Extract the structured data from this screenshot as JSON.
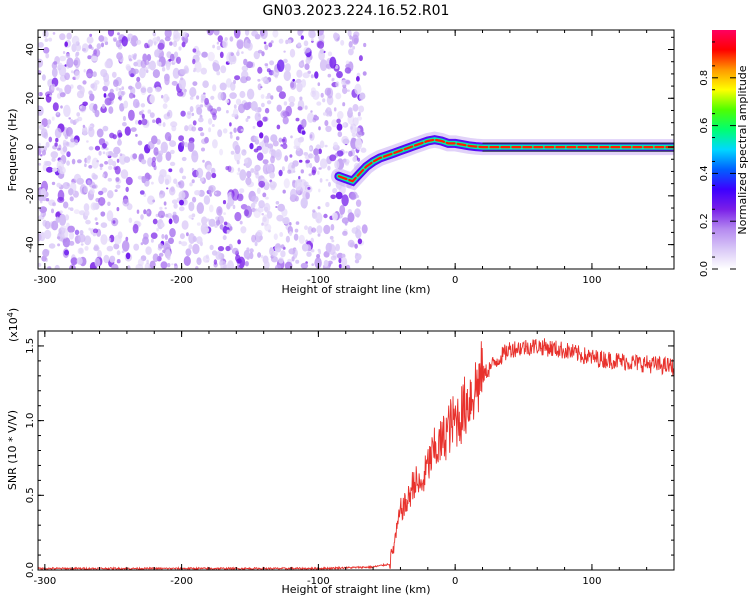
{
  "figure": {
    "title": "GN03.2023.224.16.52.R01"
  },
  "chart_data": [
    {
      "type": "heatmap",
      "title": "GN03.2023.224.16.52.R01",
      "xlabel": "Height of straight line (km)",
      "ylabel": "Frequency (Hz)",
      "xlim": [
        -305,
        160
      ],
      "ylim": [
        -50,
        48
      ],
      "xticks": [
        -300,
        -200,
        -100,
        0,
        100
      ],
      "xtick_labels": [
        "-300",
        "-200",
        "-100",
        "0",
        "100"
      ],
      "yticks": [
        -40,
        -20,
        0,
        20,
        40
      ],
      "ytick_labels": [
        "-40",
        "-20",
        "0",
        "20",
        "40"
      ],
      "noise_region_x": [
        -305,
        -72
      ],
      "ridge": {
        "x": [
          -85,
          -80,
          -75,
          -70,
          -65,
          -60,
          -55,
          -50,
          -45,
          -40,
          -35,
          -30,
          -25,
          -20,
          -15,
          -10,
          -5,
          0,
          5,
          10,
          15,
          20,
          40,
          60,
          80,
          100,
          120,
          140,
          160
        ],
        "y": [
          -12,
          -13,
          -14,
          -11,
          -8,
          -6,
          -4.5,
          -3.5,
          -2.5,
          -1.5,
          -0.5,
          0.5,
          1.5,
          2.5,
          3,
          2.5,
          1.5,
          1.5,
          1,
          0.5,
          0.2,
          0,
          0,
          0,
          0,
          0,
          0,
          0,
          0
        ]
      },
      "grid": false
    },
    {
      "type": "line",
      "xlabel": "Height of straight line (km)",
      "ylabel": "SNR (10 * V/V)",
      "scale_note": "(x10",
      "scale_exp": "4",
      "scale_close": ")",
      "xlim": [
        -305,
        160
      ],
      "ylim": [
        0,
        1.6
      ],
      "xticks": [
        -300,
        -200,
        -100,
        0,
        100
      ],
      "xtick_labels": [
        "-300",
        "-200",
        "-100",
        "0",
        "100"
      ],
      "yticks": [
        0.0,
        0.5,
        1.0,
        1.5
      ],
      "ytick_labels": [
        "0.0",
        "0.5",
        "1.0",
        "1.5"
      ],
      "series": [
        {
          "color": "#e8312c",
          "x": [
            -305,
            -100,
            -60,
            -48,
            -45,
            -42,
            -40,
            -35,
            -30,
            -25,
            -20,
            -15,
            -10,
            -5,
            0,
            5,
            10,
            20,
            30,
            40,
            60,
            80,
            100,
            120,
            140,
            160
          ],
          "y": [
            0.01,
            0.01,
            0.02,
            0.04,
            0.15,
            0.3,
            0.4,
            0.45,
            0.6,
            0.55,
            0.7,
            0.8,
            0.85,
            0.95,
            1.0,
            1.05,
            1.15,
            1.3,
            1.4,
            1.48,
            1.5,
            1.47,
            1.42,
            1.4,
            1.38,
            1.36
          ]
        }
      ],
      "grid": false
    }
  ],
  "colorbar": {
    "label": "Normalized spectral amplitude",
    "ticks": [
      0.0,
      0.2,
      0.4,
      0.6,
      0.8
    ],
    "tick_labels": [
      "0.0",
      "0.2",
      "0.4",
      "0.6",
      "0.8"
    ],
    "range": [
      0,
      1
    ],
    "stops": [
      "#ffffff",
      "#d9c8f7",
      "#b58af0",
      "#7a1fe8",
      "#3d00ff",
      "#0060ff",
      "#00d8ff",
      "#00ff70",
      "#50ff00",
      "#ffff00",
      "#ff9a00",
      "#ff0000",
      "#ff0060"
    ]
  }
}
